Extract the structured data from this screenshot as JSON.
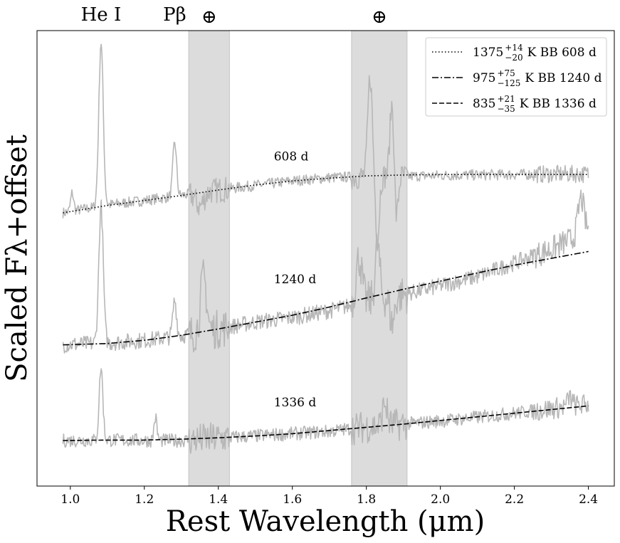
{
  "chart_data": {
    "type": "line",
    "title": "",
    "xlabel": "Rest Wavelength (μm)",
    "ylabel": "Scaled Fλ+offset",
    "xlim": [
      0.91,
      2.47
    ],
    "ylim": [
      0,
      1
    ],
    "xticks": [
      1.0,
      1.2,
      1.4,
      1.6,
      1.8,
      2.0,
      2.2,
      2.4
    ],
    "xtick_labels": [
      "1.0",
      "1.2",
      "1.4",
      "1.6",
      "1.8",
      "2.0",
      "2.2",
      "2.4"
    ],
    "yticks": [],
    "telluric_bands": [
      {
        "label": "⊕",
        "xmin": 1.32,
        "xmax": 1.43
      },
      {
        "label": "⊕",
        "xmin": 1.76,
        "xmax": 1.91
      }
    ],
    "line_labels": [
      {
        "text": "He I",
        "x": 1.083
      },
      {
        "text": "Pβ",
        "x": 1.282
      }
    ],
    "epoch_labels": [
      {
        "text": "608 d",
        "x": 1.55,
        "y": 0.715
      },
      {
        "text": "1240 d",
        "x": 1.55,
        "y": 0.445
      },
      {
        "text": "1336 d",
        "x": 1.55,
        "y": 0.175
      }
    ],
    "series": [
      {
        "name": "608 d spectrum",
        "style": "observed",
        "noise": 0.012,
        "x": [
          0.98,
          1.1,
          1.2,
          1.3,
          1.4,
          1.5,
          1.6,
          1.7,
          1.8,
          1.9,
          2.0,
          2.1,
          2.2,
          2.3,
          2.4
        ],
        "y": [
          0.6,
          0.617,
          0.627,
          0.638,
          0.65,
          0.66,
          0.67,
          0.677,
          0.68,
          0.68,
          0.682,
          0.683,
          0.684,
          0.685,
          0.685
        ],
        "features": [
          {
            "x": 1.083,
            "w": 0.006,
            "a": 0.36
          },
          {
            "x": 1.005,
            "w": 0.004,
            "a": 0.04
          },
          {
            "x": 1.282,
            "w": 0.005,
            "a": 0.12
          },
          {
            "x": 1.35,
            "w": 0.01,
            "a": -0.03
          },
          {
            "x": 1.81,
            "w": 0.006,
            "a": 0.22
          },
          {
            "x": 1.83,
            "w": 0.005,
            "a": -0.14
          },
          {
            "x": 1.87,
            "w": 0.006,
            "a": 0.17
          },
          {
            "x": 1.88,
            "w": 0.005,
            "a": -0.12
          }
        ]
      },
      {
        "name": "1240 d spectrum",
        "style": "observed",
        "noise": 0.018,
        "x": [
          0.98,
          1.1,
          1.2,
          1.3,
          1.4,
          1.5,
          1.6,
          1.7,
          1.8,
          1.9,
          2.0,
          2.1,
          2.2,
          2.3,
          2.4
        ],
        "y": [
          0.31,
          0.314,
          0.32,
          0.33,
          0.345,
          0.36,
          0.37,
          0.385,
          0.405,
          0.42,
          0.44,
          0.46,
          0.49,
          0.52,
          0.56
        ],
        "features": [
          {
            "x": 1.083,
            "w": 0.006,
            "a": 0.3
          },
          {
            "x": 1.282,
            "w": 0.005,
            "a": 0.08
          },
          {
            "x": 1.36,
            "w": 0.008,
            "a": 0.12
          },
          {
            "x": 1.78,
            "w": 0.008,
            "a": 0.1
          },
          {
            "x": 1.83,
            "w": 0.006,
            "a": 0.12
          },
          {
            "x": 1.87,
            "w": 0.006,
            "a": -0.06
          },
          {
            "x": 2.38,
            "w": 0.008,
            "a": 0.08
          }
        ]
      },
      {
        "name": "1336 d spectrum",
        "style": "observed",
        "noise": 0.015,
        "x": [
          0.98,
          1.1,
          1.2,
          1.3,
          1.4,
          1.5,
          1.6,
          1.7,
          1.8,
          1.9,
          2.0,
          2.1,
          2.2,
          2.3,
          2.4
        ],
        "y": [
          0.1,
          0.101,
          0.1,
          0.1,
          0.105,
          0.11,
          0.115,
          0.12,
          0.13,
          0.136,
          0.143,
          0.151,
          0.16,
          0.17,
          0.18
        ],
        "features": [
          {
            "x": 1.083,
            "w": 0.005,
            "a": 0.16
          },
          {
            "x": 1.23,
            "w": 0.004,
            "a": 0.05
          },
          {
            "x": 1.85,
            "w": 0.006,
            "a": 0.05
          },
          {
            "x": 2.35,
            "w": 0.006,
            "a": 0.02
          }
        ]
      },
      {
        "name": "1375 K BB 608 d",
        "style": "dotted",
        "x": [
          0.98,
          1.1,
          1.2,
          1.3,
          1.4,
          1.5,
          1.6,
          1.7,
          1.8,
          1.9,
          2.0,
          2.1,
          2.2,
          2.3,
          2.4
        ],
        "y": [
          0.6,
          0.616,
          0.627,
          0.638,
          0.65,
          0.661,
          0.67,
          0.676,
          0.681,
          0.683,
          0.684,
          0.684,
          0.684,
          0.684,
          0.684
        ]
      },
      {
        "name": "975 K BB 1240 d",
        "style": "dashdot",
        "x": [
          0.98,
          1.1,
          1.2,
          1.3,
          1.4,
          1.5,
          1.6,
          1.7,
          1.8,
          1.9,
          2.0,
          2.1,
          2.2,
          2.3,
          2.4
        ],
        "y": [
          0.31,
          0.313,
          0.32,
          0.331,
          0.345,
          0.36,
          0.375,
          0.393,
          0.413,
          0.432,
          0.45,
          0.468,
          0.485,
          0.5,
          0.515
        ]
      },
      {
        "name": "835 K BB 1336 d",
        "style": "dashed",
        "x": [
          0.98,
          1.1,
          1.2,
          1.3,
          1.4,
          1.5,
          1.6,
          1.7,
          1.8,
          1.9,
          2.0,
          2.1,
          2.2,
          2.3,
          2.4
        ],
        "y": [
          0.1,
          0.101,
          0.101,
          0.103,
          0.106,
          0.11,
          0.115,
          0.122,
          0.129,
          0.136,
          0.144,
          0.152,
          0.16,
          0.168,
          0.176
        ]
      }
    ],
    "legend": {
      "placement": "top-right",
      "entries": [
        {
          "style": "dotted",
          "temp": "1375",
          "up": "+14",
          "down": "−20",
          "text": "K BB 608 d"
        },
        {
          "style": "dashdot",
          "temp": "975",
          "up": "+75",
          "down": "−125",
          "text": "K BB 1240 d"
        },
        {
          "style": "dashed",
          "temp": "835",
          "up": "+21",
          "down": "−35",
          "text": "K BB 1336 d"
        }
      ]
    }
  }
}
